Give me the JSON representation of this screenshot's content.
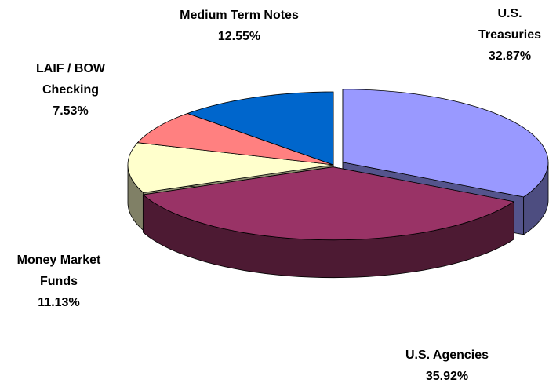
{
  "chart_data": {
    "type": "pie",
    "categories": [
      "U.S. Treasuries",
      "U.S. Agencies",
      "Money Market Funds",
      "LAIF / BOW Checking",
      "Medium Term Notes"
    ],
    "values": [
      32.87,
      35.92,
      11.13,
      7.53,
      12.55
    ],
    "value_labels": [
      "32.87%",
      "35.92%",
      "11.13%",
      "7.53%",
      "12.55%"
    ],
    "colors": [
      "#9999ff",
      "#993366",
      "#ffffcc",
      "#ff8080",
      "#0066cc"
    ]
  }
}
